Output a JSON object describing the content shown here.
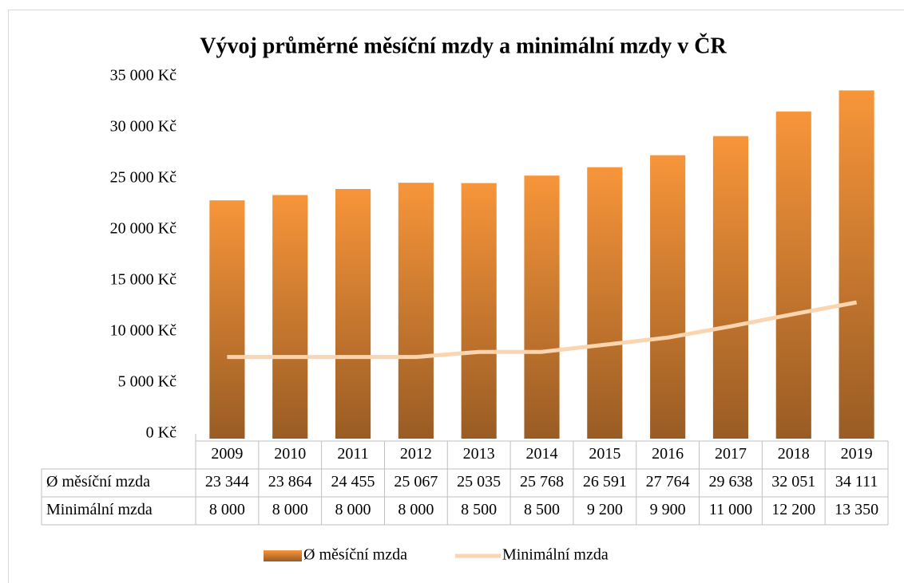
{
  "chart_data": {
    "type": "bar",
    "title": "Vývoj průměrné měsíční mzdy a minimální mzdy v ČR",
    "categories": [
      "2009",
      "2010",
      "2011",
      "2012",
      "2013",
      "2014",
      "2015",
      "2016",
      "2017",
      "2018",
      "2019"
    ],
    "series": [
      {
        "name": "Ø měsíční mzda",
        "type": "bar",
        "color": "#f7953a",
        "values": [
          23344,
          23864,
          24455,
          25067,
          25035,
          25768,
          26591,
          27764,
          29638,
          32051,
          34111
        ],
        "value_labels": [
          "23 344",
          "23 864",
          "24 455",
          "25 067",
          "25 035",
          "25 768",
          "26 591",
          "27 764",
          "29 638",
          "32 051",
          "34 111"
        ]
      },
      {
        "name": "Minimální mzda",
        "type": "line",
        "color": "#fbd5b0",
        "values": [
          8000,
          8000,
          8000,
          8000,
          8500,
          8500,
          9200,
          9900,
          11000,
          12200,
          13350
        ],
        "value_labels": [
          "8 000",
          "8 000",
          "8 000",
          "8 000",
          "8 500",
          "8 500",
          "9 200",
          "9 900",
          "11 000",
          "12 200",
          "13 350"
        ]
      }
    ],
    "ylim": [
      0,
      35000
    ],
    "yticks": [
      {
        "value": 0,
        "label": "0 Kč"
      },
      {
        "value": 5000,
        "label": "5 000 Kč"
      },
      {
        "value": 10000,
        "label": "10 000 Kč"
      },
      {
        "value": 15000,
        "label": "15 000 Kč"
      },
      {
        "value": 20000,
        "label": "20 000 Kč"
      },
      {
        "value": 25000,
        "label": "25 000 Kč"
      },
      {
        "value": 30000,
        "label": "30 000 Kč"
      },
      {
        "value": 35000,
        "label": "35 000 Kč"
      }
    ],
    "grid": false,
    "legend": "bottom"
  }
}
